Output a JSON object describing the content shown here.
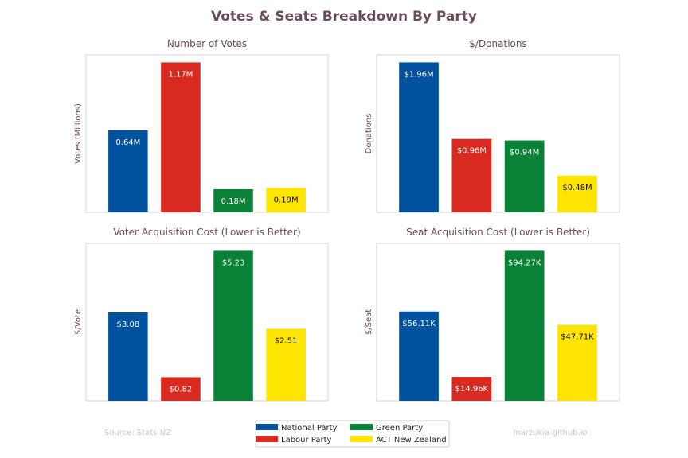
{
  "title": "Votes & Seats Breakdown By Party",
  "source": "Source: Stats NZ",
  "credit": "marzukia.github.io",
  "legend": [
    {
      "name": "National Party",
      "color": "#00529F"
    },
    {
      "name": "Labour Party",
      "color": "#D82A20"
    },
    {
      "name": "Green Party",
      "color": "#098137"
    },
    {
      "name": "ACT New Zealand",
      "color": "#FDE401"
    }
  ],
  "chart_data": [
    {
      "type": "bar",
      "title": "Number of Votes",
      "ylabel": "Votes (Millions)",
      "categories": [
        "National Party",
        "Labour Party",
        "Green Party",
        "ACT New Zealand"
      ],
      "values": [
        0.64,
        1.17,
        0.18,
        0.19
      ],
      "labels": [
        "0.64M",
        "1.17M",
        "0.18M",
        "0.19M"
      ],
      "ylim": [
        0,
        1.2285
      ]
    },
    {
      "type": "bar",
      "title": "$/Donations",
      "ylabel": "Donations",
      "categories": [
        "National Party",
        "Labour Party",
        "Green Party",
        "ACT New Zealand"
      ],
      "values": [
        1.96,
        0.96,
        0.94,
        0.48
      ],
      "labels": [
        "$1.96M",
        "$0.96M",
        "$0.94M",
        "$0.48M"
      ],
      "ylim": [
        0,
        2.058
      ]
    },
    {
      "type": "bar",
      "title": "Voter Acquisition Cost (Lower is Better)",
      "ylabel": "$/Vote",
      "categories": [
        "National Party",
        "Labour Party",
        "Green Party",
        "ACT New Zealand"
      ],
      "values": [
        3.08,
        0.82,
        5.23,
        2.51
      ],
      "labels": [
        "$3.08",
        "$0.82",
        "$5.23",
        "$2.51"
      ],
      "ylim": [
        0,
        5.4915
      ]
    },
    {
      "type": "bar",
      "title": "Seat Acquisition Cost (Lower is Better)",
      "ylabel": "$/Seat",
      "categories": [
        "National Party",
        "Labour Party",
        "Green Party",
        "ACT New Zealand"
      ],
      "values": [
        56.11,
        14.96,
        94.27,
        47.71
      ],
      "labels": [
        "$56.11K",
        "$14.96K",
        "$94.27K",
        "$47.71K"
      ],
      "ylim": [
        0,
        98.98
      ]
    }
  ]
}
